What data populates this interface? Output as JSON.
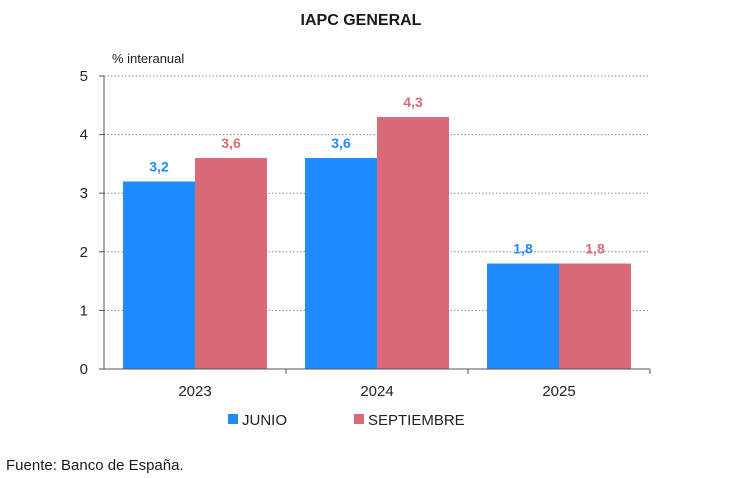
{
  "chart_data": {
    "type": "bar",
    "title": "IAPC GENERAL",
    "ylabel": "% interanual",
    "xlabel": "",
    "categories": [
      "2023",
      "2024",
      "2025"
    ],
    "series": [
      {
        "name": "JUNIO",
        "values": [
          3.2,
          3.6,
          1.8
        ],
        "labels": [
          "3,2",
          "3,6",
          "1,8"
        ],
        "color": "#1f8bff"
      },
      {
        "name": "SEPTIEMBRE",
        "values": [
          3.6,
          4.3,
          1.8
        ],
        "labels": [
          "3,6",
          "4,3",
          "1,8"
        ],
        "color": "#d96b78"
      }
    ],
    "ylim": [
      0,
      5
    ],
    "yticks": [
      "0",
      "1",
      "2",
      "3",
      "4",
      "5"
    ],
    "grid": true,
    "legend": "bottom"
  },
  "footer": {
    "source": "Fuente: Banco de España."
  }
}
